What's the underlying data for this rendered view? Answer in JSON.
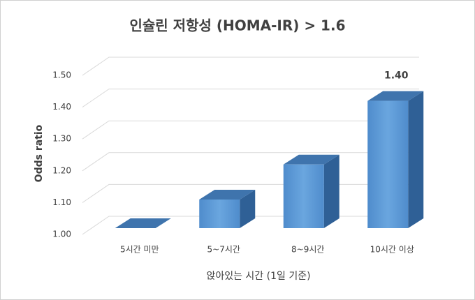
{
  "chart_data": {
    "type": "bar3d",
    "title": "인슐린 저항성 (HOMA-IR) > 1.6",
    "x_label": "앉아있는 시간 (1일 기준)",
    "y_label": "Odds ratio",
    "categories": [
      "5시간 미만",
      "5~7시간",
      "8~9시간",
      "10시간 이상"
    ],
    "values": [
      1.0,
      1.09,
      1.2,
      1.4
    ],
    "value_labels": [
      null,
      null,
      null,
      "1.40"
    ],
    "color": "#5b9bd5",
    "ylim": [
      1.0,
      1.5
    ],
    "yticks": [
      {
        "value": 1.0,
        "label": "1.00"
      },
      {
        "value": 1.1,
        "label": "1.10"
      },
      {
        "value": 1.2,
        "label": "1.20"
      },
      {
        "value": 1.3,
        "label": "1.30"
      },
      {
        "value": 1.4,
        "label": "1.40"
      },
      {
        "value": 1.5,
        "label": "1.50"
      }
    ],
    "grid": true
  }
}
